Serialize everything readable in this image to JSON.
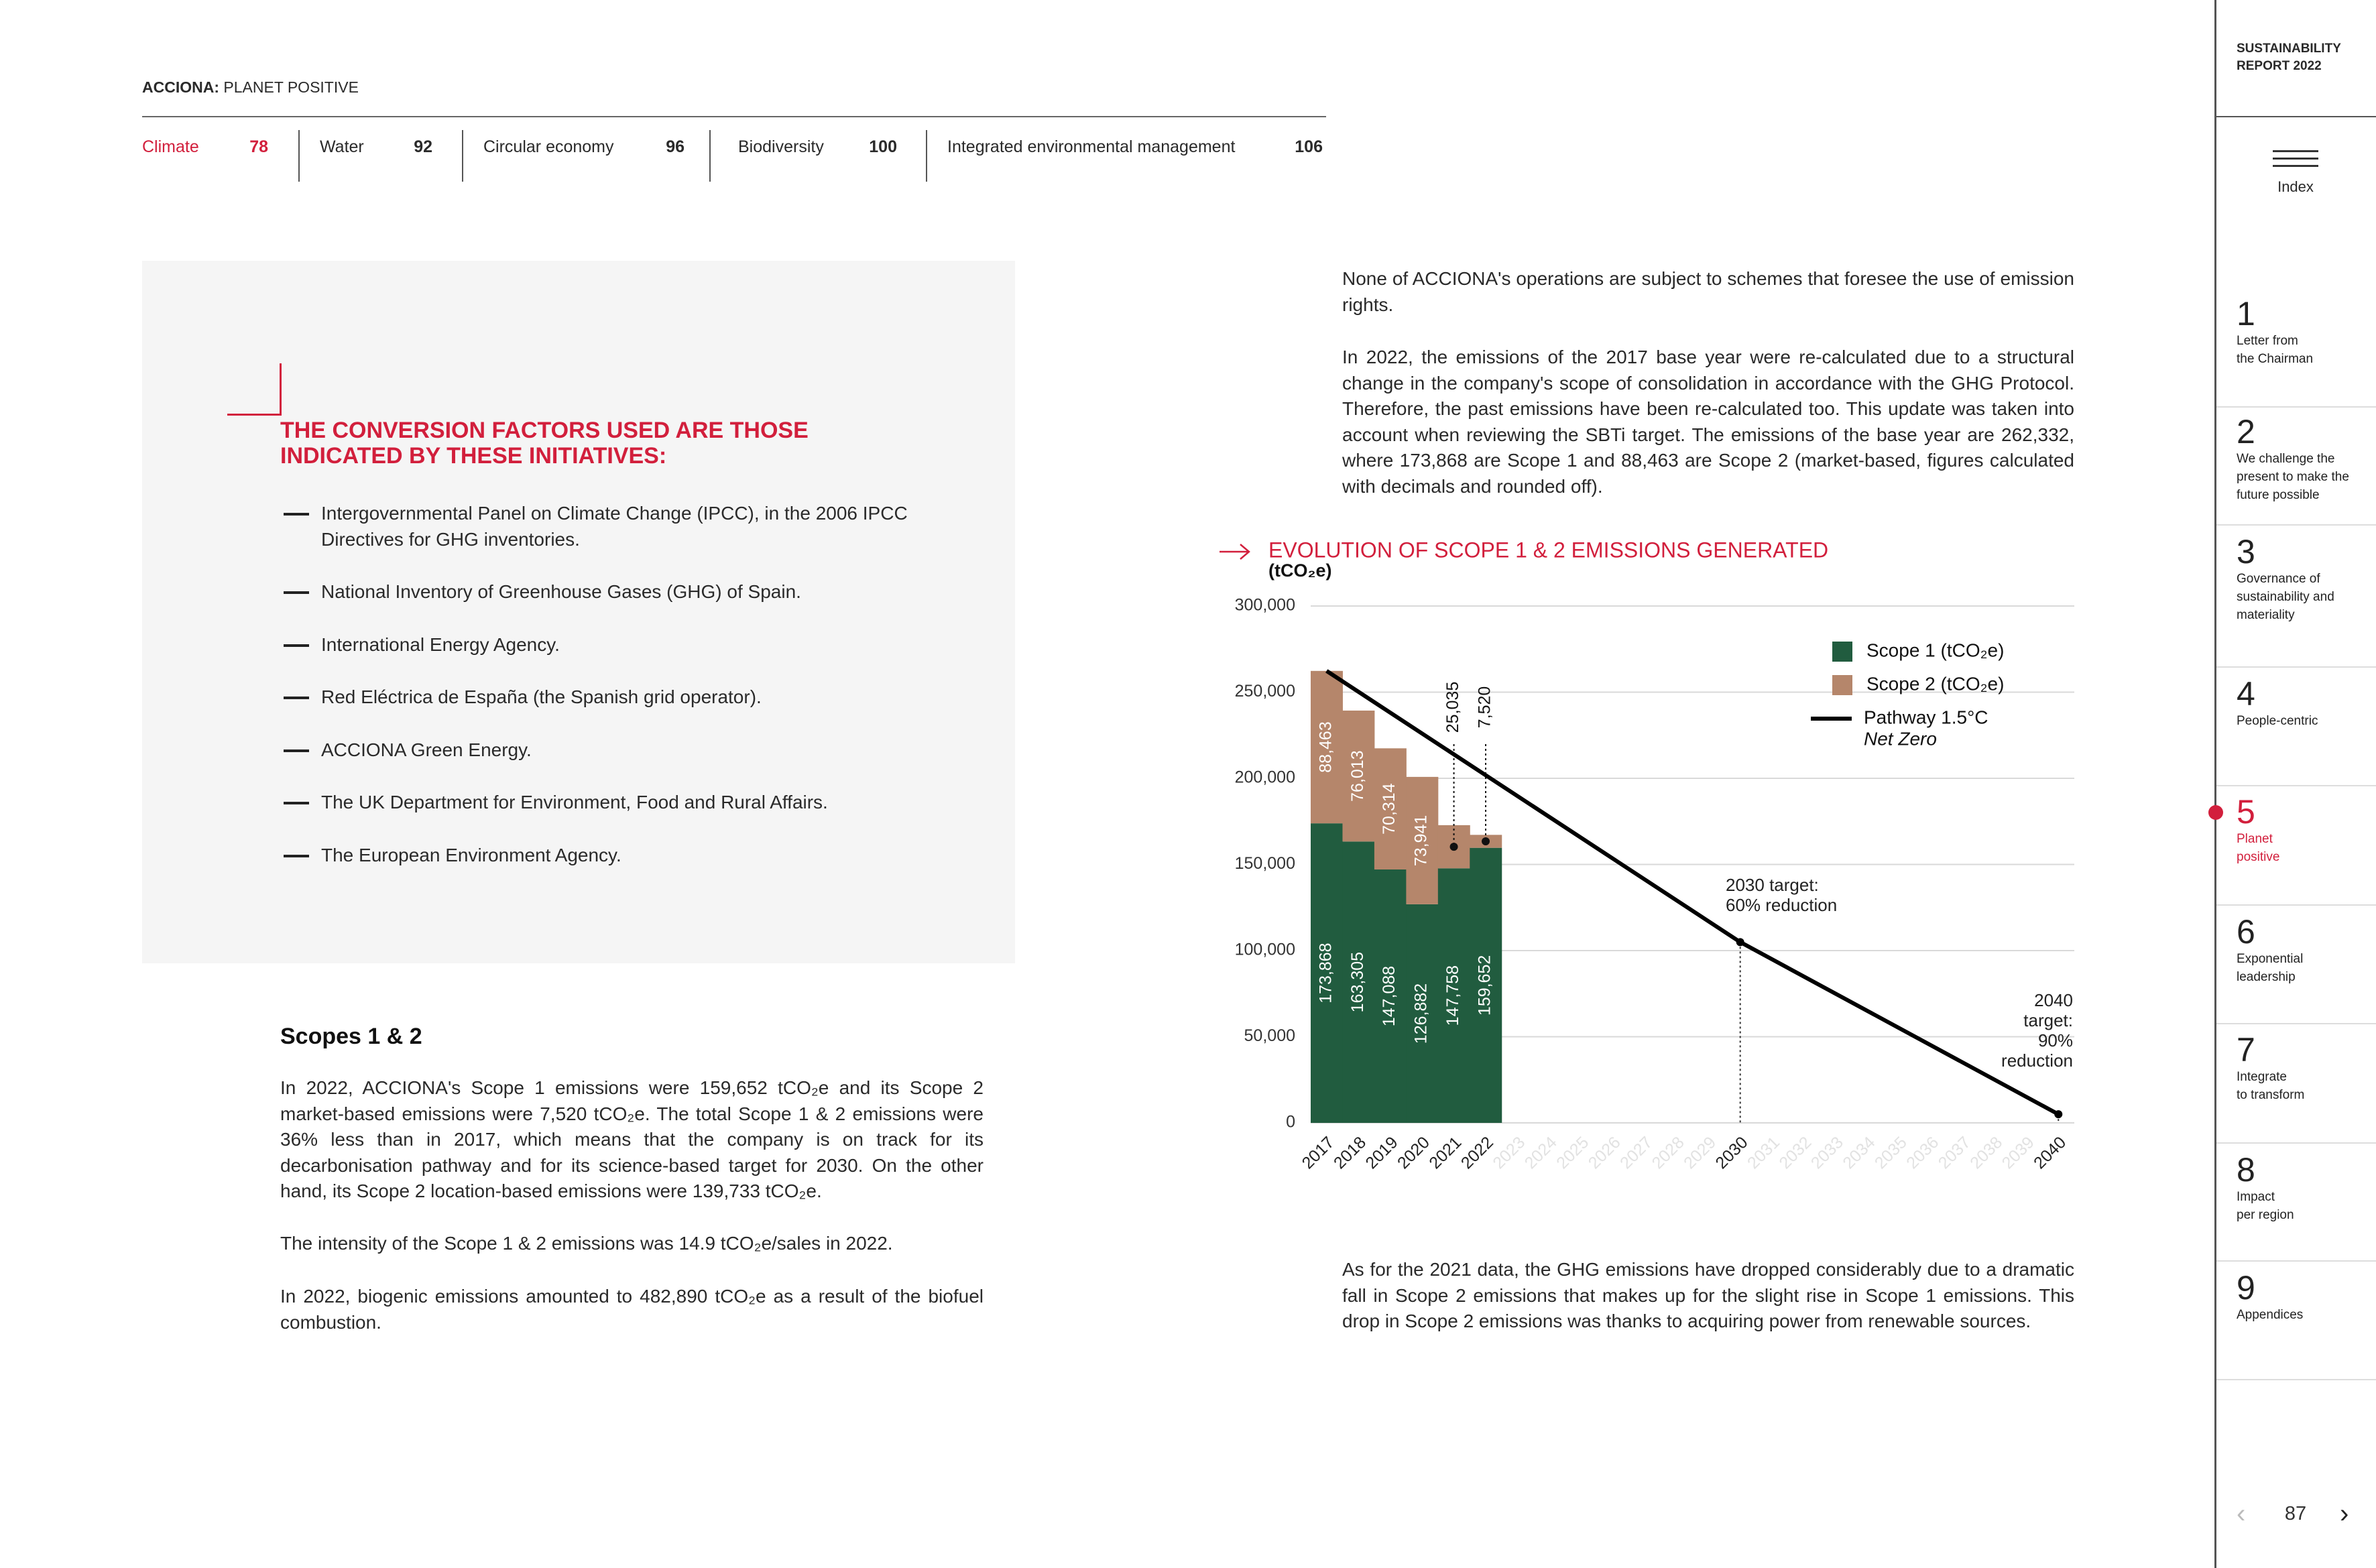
{
  "header": {
    "brand": "ACCIONA:",
    "section": "PLANET POSITIVE"
  },
  "tabs": [
    {
      "label": "Climate",
      "page": 78
    },
    {
      "label": "Water",
      "page": 92
    },
    {
      "label": "Circular economy",
      "page": 96
    },
    {
      "label": "Biodiversity",
      "page": 100
    },
    {
      "label": "Integrated environmental management",
      "page": 106
    }
  ],
  "box": {
    "heading": [
      "THE CONVERSION FACTORS USED ARE THOSE",
      "INDICATED BY THESE INITIATIVES:"
    ],
    "items": [
      "Intergovernmental Panel on Climate Change (IPCC), in the 2006 IPCC Directives for GHG inventories.",
      "National Inventory of Greenhouse Gases (GHG) of Spain.",
      "International Energy Agency.",
      "Red Eléctrica de España (the Spanish grid operator).",
      "ACCIONA Green Energy.",
      "The UK Department for Environment, Food and Rural Affairs.",
      "The European Environment Agency."
    ]
  },
  "left": {
    "heading": "Scopes 1 & 2",
    "paragraphs": [
      "In 2022, ACCIONA's Scope 1 emissions were 159,652 tCO₂e and its Scope 2 market-based emissions were 7,520 tCO₂e. The total Scope 1 & 2 emissions were 36% less than in 2017, which means that the company is on track for its decarbonisation pathway and for its science-based target for 2030. On the other hand, its Scope 2 location-based emissions were 139,733 tCO₂e.",
      "The intensity of the Scope 1 & 2 emissions was 14.9 tCO₂e/sales in 2022.",
      "In 2022, biogenic emissions amounted to 482,890 tCO₂e as a result of the biofuel combustion."
    ]
  },
  "right": {
    "paragraphs": [
      "None of ACCIONA's operations are subject to schemes that foresee the use of emission rights.",
      "In 2022, the emissions of the 2017 base year were re-calculated due to a structural change in the company's scope of consolidation in accordance with the GHG Protocol. Therefore, the past emissions have been re-calculated too. This update was taken into account when reviewing the SBTi target. The emissions of the base year are 262,332, where 173,868 are Scope 1 and 88,463 are Scope 2 (market-based, figures calculated with decimals and rounded off)."
    ],
    "closing": "As for the 2021 data, the GHG emissions have dropped considerably due to a dramatic fall in Scope 2 emissions that makes up for the slight rise in Scope 1 emissions. This drop in Scope 2 emissions was thanks to acquiring power from renewable sources."
  },
  "chart_data": {
    "type": "bar",
    "stacked": true,
    "title": "EVOLUTION OF SCOPE 1 & 2 EMISSIONS GENERATED",
    "ylabel": "(tCO₂e)",
    "categories": [
      2017,
      2018,
      2019,
      2020,
      2021,
      2022,
      2023,
      2024,
      2025,
      2026,
      2027,
      2028,
      2029,
      2030,
      2031,
      2032,
      2033,
      2034,
      2035,
      2036,
      2037,
      2038,
      2039,
      2040
    ],
    "series": [
      {
        "name": "Scope 1 (tCO₂e)",
        "color": "#215c3f",
        "values": [
          173868,
          163305,
          147088,
          126882,
          147758,
          159652,
          null,
          null,
          null,
          null,
          null,
          null,
          null,
          null,
          null,
          null,
          null,
          null,
          null,
          null,
          null,
          null,
          null,
          null
        ],
        "value_labels": [
          "173,868",
          "163,305",
          "147,088",
          "126,882",
          "147,758",
          "159,652",
          null,
          null,
          null,
          null,
          null,
          null,
          null,
          null,
          null,
          null,
          null,
          null,
          null,
          null,
          null,
          null,
          null,
          null
        ]
      },
      {
        "name": "Scope 2 (tCO₂e)",
        "color": "#b5866b",
        "values": [
          88463,
          76013,
          70314,
          73941,
          25035,
          7520,
          null,
          null,
          null,
          null,
          null,
          null,
          null,
          null,
          null,
          null,
          null,
          null,
          null,
          null,
          null,
          null,
          null,
          null
        ],
        "value_labels": [
          "88,463",
          "76,013",
          "70,314",
          "73,941",
          "25,035",
          "7,520",
          null,
          null,
          null,
          null,
          null,
          null,
          null,
          null,
          null,
          null,
          null,
          null,
          null,
          null,
          null,
          null,
          null,
          null
        ]
      },
      {
        "name": "Pathway 1.5°C",
        "note": "Net Zero",
        "type": "line",
        "color": "#000000",
        "x": [
          2017,
          2030,
          2040
        ],
        "values": [
          262332,
          104933,
          5000
        ]
      }
    ],
    "annotations": [
      [
        "2030 target:",
        "60% reduction"
      ],
      [
        "2040",
        "target:",
        "90%",
        "reduction"
      ]
    ],
    "ylim": [
      0,
      300000
    ],
    "yticks": [
      0,
      {
        "value": 50000,
        "label": "50,000"
      },
      {
        "value": 100000,
        "label": "100,000"
      },
      {
        "value": 150000,
        "label": "150,000"
      },
      {
        "value": 200000,
        "label": "200,000"
      },
      {
        "value": 250000,
        "label": "250,000"
      },
      {
        "value": 300000,
        "label": "300,000"
      }
    ],
    "grid": true
  },
  "sidebar": {
    "report": [
      "SUSTAINABILITY",
      "REPORT 2022"
    ],
    "index": "Index",
    "page": 87,
    "chapters": [
      {
        "number": 1,
        "label": [
          "Letter from",
          "the Chairman"
        ]
      },
      {
        "number": 2,
        "label": [
          "We challenge the",
          "present to make the",
          "future possible"
        ]
      },
      {
        "number": 3,
        "label": [
          "Governance of",
          "sustainability and",
          "materiality"
        ]
      },
      {
        "number": 4,
        "label": [
          "People-centric"
        ]
      },
      {
        "number": 5,
        "label": [
          "Planet",
          "positive"
        ]
      },
      {
        "number": 6,
        "label": [
          "Exponential",
          "leadership"
        ]
      },
      {
        "number": 7,
        "label": [
          "Integrate",
          "to transform"
        ]
      },
      {
        "number": 8,
        "label": [
          "Impact",
          "per region"
        ]
      },
      {
        "number": 9,
        "label": [
          "Appendices"
        ]
      }
    ]
  }
}
